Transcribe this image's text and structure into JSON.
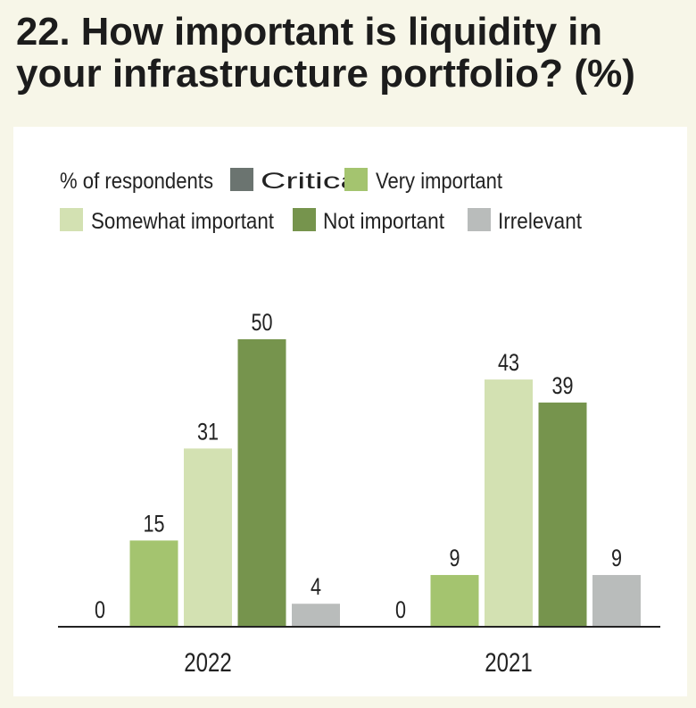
{
  "title_lines": [
    "22. How important is liquidity in",
    "your infrastructure portfolio? (%)"
  ],
  "chart_data": {
    "type": "bar",
    "title": "22. How important is liquidity in your infrastructure portfolio? (%)",
    "legend_title": "% of respondents",
    "legend_position": "top-left",
    "categories": [
      "2022",
      "2021"
    ],
    "series": [
      {
        "name": "Critical",
        "color": "#6b7470",
        "values": [
          0,
          0
        ]
      },
      {
        "name": "Very important",
        "color": "#a4c46f",
        "values": [
          15,
          9
        ]
      },
      {
        "name": "Somewhat important",
        "color": "#d3e1b2",
        "values": [
          31,
          43
        ]
      },
      {
        "name": "Not important",
        "color": "#76944d",
        "values": [
          50,
          39
        ]
      },
      {
        "name": "Irrelevant",
        "color": "#b9bcbb",
        "values": [
          4,
          9
        ]
      }
    ],
    "ylim": [
      0,
      50
    ],
    "grid": false,
    "data_labels": true,
    "xlabel": "",
    "ylabel": ""
  }
}
